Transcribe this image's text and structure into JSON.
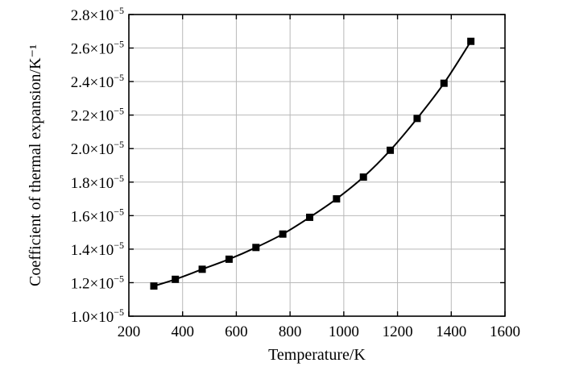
{
  "chart_data": {
    "type": "line",
    "title": "",
    "xlabel": "Temperature/K",
    "ylabel": "Coefficient of thermal expansion/K⁻¹",
    "xlim": [
      200,
      1600
    ],
    "ylim": [
      1e-05,
      2.8e-05
    ],
    "x_ticks": [
      "200",
      "400",
      "600",
      "800",
      "1000",
      "1200",
      "1400",
      "1600"
    ],
    "y_ticks": [
      {
        "mantissa": "1.0×10",
        "exp": "−5"
      },
      {
        "mantissa": "1.2×10",
        "exp": "−5"
      },
      {
        "mantissa": "1.4×10",
        "exp": "−5"
      },
      {
        "mantissa": "1.6×10",
        "exp": "−5"
      },
      {
        "mantissa": "1.8×10",
        "exp": "−5"
      },
      {
        "mantissa": "2.0×10",
        "exp": "−5"
      },
      {
        "mantissa": "2.2×10",
        "exp": "−5"
      },
      {
        "mantissa": "2.4×10",
        "exp": "−5"
      },
      {
        "mantissa": "2.6×10",
        "exp": "−5"
      },
      {
        "mantissa": "2.8×10",
        "exp": "−5"
      }
    ],
    "grid": true,
    "marker": "square",
    "series": [
      {
        "x": [
          293,
          373,
          473,
          573,
          673,
          773,
          873,
          973,
          1073,
          1173,
          1273,
          1373,
          1473
        ],
        "y": [
          1.18e-05,
          1.22e-05,
          1.28e-05,
          1.34e-05,
          1.41e-05,
          1.49e-05,
          1.59e-05,
          1.7e-05,
          1.83e-05,
          1.99e-05,
          2.18e-05,
          2.39e-05,
          2.64e-05
        ]
      }
    ]
  }
}
